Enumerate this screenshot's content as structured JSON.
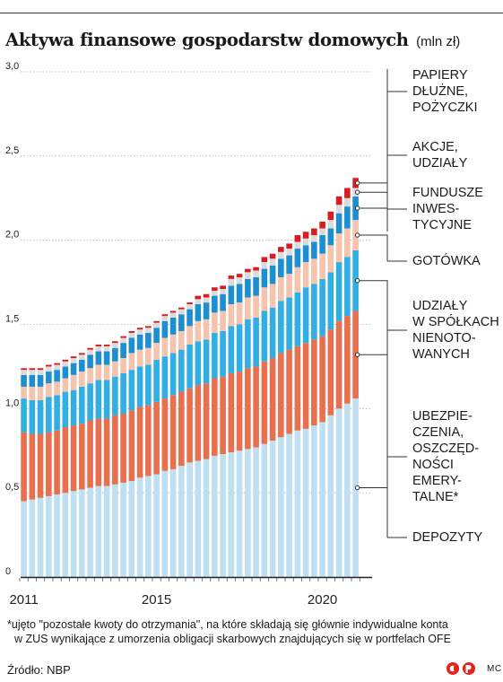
{
  "title": "Aktywa finansowe gospodarstw domowych",
  "unit": "(mln zł)",
  "footnote_line1": "*ujęto \"pozostałe kwoty do otrzymania\", na które składają się głównie indywidualne konta",
  "footnote_line2": "w ZUS wynikające z umorzenia obligacji skarbowych znajdujących się w portfelach OFE",
  "source": "Źródło: NBP",
  "author": "MC",
  "colors": {
    "depozyty": "#bfe0f2",
    "ubezpieczenia": "#e8704e",
    "udzialy": "#31aee3",
    "gotowka": "#f6c4ac",
    "fundusze": "#1d8fd0",
    "akcje": "#dbdbdb",
    "papiery": "#d81c22",
    "axis": "#222222",
    "grid": "#b5b5b5"
  },
  "chart_data": {
    "type": "bar",
    "stacked": true,
    "ylim": [
      0,
      3.0
    ],
    "yticks": [
      "3,0",
      "2,5",
      "2,0",
      "1,5",
      "1,0",
      "0,5",
      "0"
    ],
    "xticks": [
      {
        "label": "2011",
        "index": 0
      },
      {
        "label": "2015",
        "index": 16
      },
      {
        "label": "2020",
        "index": 36
      }
    ],
    "grid": true,
    "legend_position": "right",
    "categories": [
      "2010Q4",
      "2011Q1",
      "2011Q2",
      "2011Q3",
      "2011Q4",
      "2012Q1",
      "2012Q2",
      "2012Q3",
      "2012Q4",
      "2013Q1",
      "2013Q2",
      "2013Q3",
      "2013Q4",
      "2014Q1",
      "2014Q2",
      "2014Q3",
      "2014Q4",
      "2015Q1",
      "2015Q2",
      "2015Q3",
      "2015Q4",
      "2016Q1",
      "2016Q2",
      "2016Q3",
      "2016Q4",
      "2017Q1",
      "2017Q2",
      "2017Q3",
      "2017Q4",
      "2018Q1",
      "2018Q2",
      "2018Q3",
      "2018Q4",
      "2019Q1",
      "2019Q2",
      "2019Q3",
      "2019Q4",
      "2020Q1",
      "2020Q2",
      "2020Q3",
      "2020Q4"
    ],
    "series": [
      {
        "name": "DEPOZYTY",
        "color_key": "depozyty",
        "values": [
          0.45,
          0.46,
          0.47,
          0.48,
          0.49,
          0.5,
          0.51,
          0.52,
          0.53,
          0.54,
          0.54,
          0.55,
          0.56,
          0.57,
          0.59,
          0.6,
          0.61,
          0.63,
          0.64,
          0.66,
          0.68,
          0.69,
          0.7,
          0.72,
          0.73,
          0.74,
          0.75,
          0.76,
          0.77,
          0.79,
          0.81,
          0.83,
          0.85,
          0.87,
          0.88,
          0.9,
          0.92,
          0.96,
          1.0,
          1.03,
          1.06
        ]
      },
      {
        "name": "UBEZPIECZENIA, OSZCZĘDNOŚCI EMERYTALNE*",
        "color_key": "ubezpieczenia",
        "values": [
          0.41,
          0.39,
          0.38,
          0.38,
          0.38,
          0.39,
          0.39,
          0.39,
          0.4,
          0.4,
          0.4,
          0.41,
          0.41,
          0.42,
          0.42,
          0.42,
          0.43,
          0.43,
          0.44,
          0.44,
          0.44,
          0.45,
          0.45,
          0.46,
          0.46,
          0.47,
          0.47,
          0.48,
          0.48,
          0.49,
          0.49,
          0.5,
          0.5,
          0.5,
          0.51,
          0.51,
          0.51,
          0.51,
          0.52,
          0.52,
          0.52
        ]
      },
      {
        "name": "UDZIAŁY W SPÓŁKACH NIENOTOWANYCH",
        "color_key": "udzialy",
        "values": [
          0.2,
          0.2,
          0.2,
          0.21,
          0.21,
          0.21,
          0.21,
          0.22,
          0.22,
          0.23,
          0.23,
          0.23,
          0.24,
          0.24,
          0.24,
          0.24,
          0.25,
          0.25,
          0.25,
          0.25,
          0.26,
          0.26,
          0.26,
          0.27,
          0.27,
          0.28,
          0.28,
          0.29,
          0.29,
          0.3,
          0.3,
          0.31,
          0.31,
          0.32,
          0.33,
          0.33,
          0.34,
          0.34,
          0.35,
          0.35,
          0.36
        ]
      },
      {
        "name": "GOTÓWKA",
        "color_key": "gotowka",
        "values": [
          0.07,
          0.08,
          0.08,
          0.08,
          0.08,
          0.08,
          0.09,
          0.09,
          0.09,
          0.09,
          0.09,
          0.09,
          0.09,
          0.1,
          0.1,
          0.1,
          0.1,
          0.11,
          0.11,
          0.11,
          0.11,
          0.12,
          0.12,
          0.12,
          0.12,
          0.13,
          0.13,
          0.13,
          0.13,
          0.14,
          0.14,
          0.14,
          0.14,
          0.15,
          0.15,
          0.15,
          0.15,
          0.16,
          0.17,
          0.17,
          0.18
        ]
      },
      {
        "name": "FUNDUSZE INWESTYCYJNE",
        "color_key": "fundusze",
        "values": [
          0.07,
          0.07,
          0.07,
          0.07,
          0.07,
          0.07,
          0.07,
          0.07,
          0.08,
          0.08,
          0.08,
          0.08,
          0.09,
          0.09,
          0.09,
          0.09,
          0.09,
          0.1,
          0.1,
          0.1,
          0.1,
          0.1,
          0.1,
          0.1,
          0.1,
          0.11,
          0.11,
          0.11,
          0.11,
          0.11,
          0.11,
          0.11,
          0.11,
          0.11,
          0.1,
          0.1,
          0.11,
          0.1,
          0.12,
          0.13,
          0.14
        ]
      },
      {
        "name": "AKCJE, UDZIAŁY",
        "color_key": "akcje",
        "values": [
          0.03,
          0.03,
          0.03,
          0.03,
          0.03,
          0.03,
          0.03,
          0.03,
          0.03,
          0.03,
          0.03,
          0.03,
          0.03,
          0.03,
          0.03,
          0.03,
          0.03,
          0.03,
          0.03,
          0.03,
          0.03,
          0.03,
          0.03,
          0.03,
          0.03,
          0.04,
          0.04,
          0.04,
          0.04,
          0.04,
          0.04,
          0.04,
          0.04,
          0.04,
          0.04,
          0.04,
          0.04,
          0.05,
          0.05,
          0.05,
          0.05
        ]
      },
      {
        "name": "PAPIERY DŁUŻNE, POŻYCZKI",
        "color_key": "papiery",
        "values": [
          0.01,
          0.01,
          0.01,
          0.01,
          0.01,
          0.01,
          0.01,
          0.01,
          0.01,
          0.01,
          0.01,
          0.01,
          0.01,
          0.01,
          0.01,
          0.01,
          0.01,
          0.01,
          0.01,
          0.01,
          0.01,
          0.02,
          0.02,
          0.02,
          0.02,
          0.02,
          0.02,
          0.02,
          0.02,
          0.03,
          0.03,
          0.03,
          0.03,
          0.04,
          0.04,
          0.04,
          0.04,
          0.05,
          0.05,
          0.06,
          0.06
        ]
      }
    ]
  },
  "legend": [
    {
      "key": "papiery",
      "lines": [
        "PAPIERY",
        "DŁUŻNE,",
        "POŻYCZKI"
      ]
    },
    {
      "key": "akcje",
      "lines": [
        "AKCJE,",
        "UDZIAŁY"
      ]
    },
    {
      "key": "fundusze",
      "lines": [
        "FUNDUSZE",
        "INWES-",
        "TYCYJNE"
      ]
    },
    {
      "key": "gotowka",
      "lines": [
        "GOTÓWKA"
      ]
    },
    {
      "key": "udzialy",
      "lines": [
        "UDZIAŁY",
        "W SPÓŁKACH",
        "NIENOTO-",
        "WANYCH"
      ]
    },
    {
      "key": "ubezpieczenia",
      "lines": [
        "UBEZPIE-",
        "CZENIA,",
        "OSZCZĘD-",
        "NOŚCI",
        "EMERY-",
        "TALNE*"
      ]
    },
    {
      "key": "depozyty",
      "lines": [
        "DEPOZYTY"
      ]
    }
  ]
}
